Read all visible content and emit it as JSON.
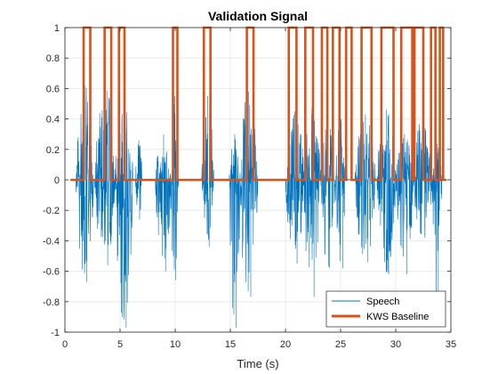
{
  "chart_data": {
    "type": "line",
    "title": "Validation Signal",
    "xlabel": "Time (s)",
    "ylabel": "",
    "xlim": [
      0,
      35
    ],
    "ylim": [
      -1,
      1
    ],
    "xticks": [
      0,
      5,
      10,
      15,
      20,
      25,
      30,
      35
    ],
    "yticks": [
      -1,
      -0.8,
      -0.6,
      -0.4,
      -0.2,
      0,
      0.2,
      0.4,
      0.6,
      0.8,
      1
    ],
    "grid": true,
    "legend_position": "bottom-right",
    "series": [
      {
        "name": "Speech",
        "color": "#0072BD",
        "style": "thin-line",
        "bursts": [
          {
            "start": 1.0,
            "end": 2.6,
            "min": -0.67,
            "max": 0.62
          },
          {
            "start": 2.7,
            "end": 4.6,
            "min": -0.56,
            "max": 0.62
          },
          {
            "start": 4.5,
            "end": 6.2,
            "min": -0.97,
            "max": 0.5
          },
          {
            "start": 6.4,
            "end": 7.0,
            "min": -0.26,
            "max": 0.26
          },
          {
            "start": 8.2,
            "end": 9.7,
            "min": -0.6,
            "max": 0.3
          },
          {
            "start": 9.6,
            "end": 10.3,
            "min": -0.66,
            "max": 0.55
          },
          {
            "start": 12.4,
            "end": 13.5,
            "min": -0.44,
            "max": 0.55
          },
          {
            "start": 14.9,
            "end": 15.9,
            "min": -0.97,
            "max": 0.3
          },
          {
            "start": 15.8,
            "end": 17.5,
            "min": -0.77,
            "max": 0.58
          },
          {
            "start": 20.0,
            "end": 21.7,
            "min": -0.55,
            "max": 0.45
          },
          {
            "start": 21.6,
            "end": 23.2,
            "min": -0.77,
            "max": 0.47
          },
          {
            "start": 23.2,
            "end": 24.5,
            "min": -0.58,
            "max": 0.42
          },
          {
            "start": 24.5,
            "end": 25.6,
            "min": -0.58,
            "max": 0.4
          },
          {
            "start": 26.3,
            "end": 28.2,
            "min": -0.54,
            "max": 0.43
          },
          {
            "start": 28.3,
            "end": 30.0,
            "min": -0.62,
            "max": 0.46
          },
          {
            "start": 30.0,
            "end": 31.6,
            "min": -0.62,
            "max": 0.3
          },
          {
            "start": 31.6,
            "end": 33.3,
            "min": -0.38,
            "max": 0.43
          },
          {
            "start": 33.3,
            "end": 34.2,
            "min": -0.83,
            "max": 0.24
          }
        ]
      },
      {
        "name": "KWS Baseline",
        "color": "#D95319",
        "style": "thick-line",
        "pulses": [
          [
            1.7,
            2.3
          ],
          [
            3.6,
            4.2
          ],
          [
            4.9,
            5.4
          ],
          [
            9.8,
            10.2
          ],
          [
            12.6,
            13.2
          ],
          [
            16.5,
            17.1
          ],
          [
            20.3,
            21.0
          ],
          [
            21.8,
            22.5
          ],
          [
            23.3,
            23.8
          ],
          [
            24.3,
            24.9
          ],
          [
            25.5,
            26.0
          ],
          [
            26.9,
            27.8
          ],
          [
            28.7,
            29.8
          ],
          [
            30.5,
            31.5
          ],
          [
            31.7,
            32.5
          ],
          [
            33.2,
            33.6
          ],
          [
            34.0,
            34.3
          ]
        ]
      }
    ]
  }
}
